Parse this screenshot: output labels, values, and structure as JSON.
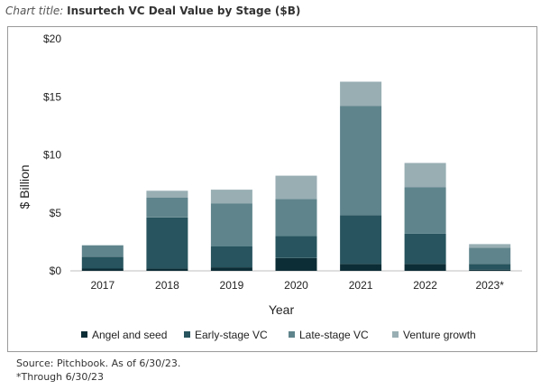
{
  "header": {
    "prefix": "Chart title:",
    "title": "Insurtech VC Deal Value by Stage ($B)"
  },
  "footer": {
    "source": "Source: Pitchbook. As of 6/30/23.",
    "note": "*Through 6/30/23"
  },
  "colors": {
    "angel": "#0d2d36",
    "early": "#27545e",
    "late": "#5f848c",
    "growth": "#98aeb3"
  },
  "chart_data": {
    "type": "bar",
    "stacked": true,
    "title": "",
    "xlabel": "Year",
    "ylabel": "$ Billion",
    "ylim": [
      0,
      20
    ],
    "yticks": [
      0,
      5,
      10,
      15,
      20
    ],
    "ytick_labels": [
      "$0",
      "$5",
      "$10",
      "$15",
      "$20"
    ],
    "grid": false,
    "legend_position": "bottom",
    "categories": [
      "2017",
      "2018",
      "2019",
      "2020",
      "2021",
      "2022",
      "2023*"
    ],
    "series": [
      {
        "name": "Angel and seed",
        "color": "#0d2d36",
        "values": [
          0.2,
          0.2,
          0.3,
          1.1,
          0.6,
          0.6,
          0.1
        ]
      },
      {
        "name": "Early-stage VC",
        "color": "#27545e",
        "values": [
          1.0,
          4.4,
          1.8,
          1.9,
          4.2,
          2.6,
          0.5
        ]
      },
      {
        "name": "Late-stage VC",
        "color": "#5f848c",
        "values": [
          1.0,
          1.7,
          3.7,
          3.2,
          9.4,
          4.0,
          1.4
        ]
      },
      {
        "name": "Venture growth",
        "color": "#98aeb3",
        "values": [
          0.0,
          0.6,
          1.2,
          2.0,
          2.1,
          2.1,
          0.3
        ]
      }
    ]
  }
}
